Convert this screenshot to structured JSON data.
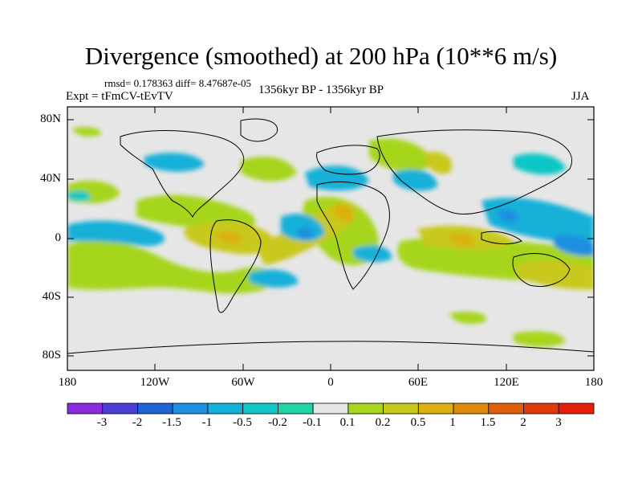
{
  "title": "Divergence (smoothed) at 200 hPa (10**6 m/s)",
  "stats": "rmsd= 0.178363 diff= 8.47687e-05",
  "experiment": "Expt = tFmCV-tEvTV",
  "period": "1356kyr BP - 1356kyr BP",
  "season": "JJA",
  "map": {
    "lon_range": [
      -180,
      180
    ],
    "lat_range": [
      -90,
      90
    ],
    "y_ticks": [
      "80N",
      "40N",
      "0",
      "40S",
      "80S"
    ],
    "x_ticks": [
      "180",
      "120W",
      "60W",
      "0",
      "60E",
      "120E",
      "180"
    ],
    "background_color": "#e6e6e6",
    "coastline_color": "#000000"
  },
  "colorbar": {
    "labels": [
      "-3",
      "-2",
      "-1.5",
      "-1",
      "-0.5",
      "-0.2",
      "-0.1",
      "0.1",
      "0.2",
      "0.5",
      "1",
      "1.5",
      "2",
      "3"
    ],
    "colors": [
      "#8a2be2",
      "#4b3fd6",
      "#1e64d6",
      "#1e8fe0",
      "#13b0d8",
      "#10c6c6",
      "#20d6a6",
      "#e6e6e6",
      "#a6d61e",
      "#c9c81a",
      "#dcb011",
      "#e08a0c",
      "#e0600a",
      "#e03a0a",
      "#e61e0a"
    ]
  }
}
